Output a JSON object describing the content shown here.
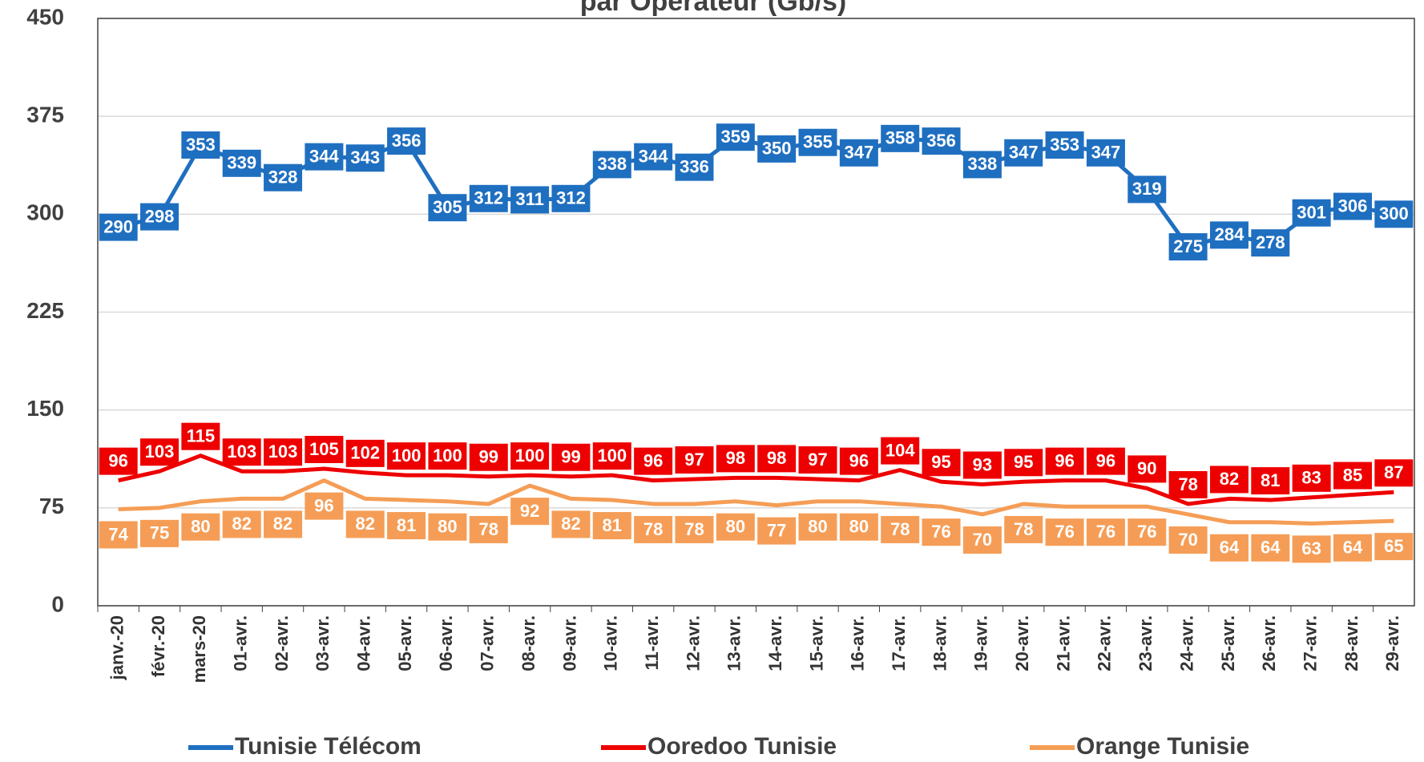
{
  "chart_data": {
    "type": "line",
    "title": "par Opérateur (Gb/s)",
    "categories": [
      "janv.-20",
      "févr.-20",
      "mars-20",
      "01-avr.",
      "02-avr.",
      "03-avr.",
      "04-avr.",
      "05-avr.",
      "06-avr.",
      "07-avr.",
      "08-avr.",
      "09-avr.",
      "10-avr.",
      "11-avr.",
      "12-avr.",
      "13-avr.",
      "14-avr.",
      "15-avr.",
      "16-avr.",
      "17-avr.",
      "18-avr.",
      "19-avr.",
      "20-avr.",
      "21-avr.",
      "22-avr.",
      "23-avr.",
      "24-avr.",
      "25-avr.",
      "26-avr.",
      "27-avr.",
      "28-avr.",
      "29-avr."
    ],
    "series": [
      {
        "name": "Tunisie Télécom",
        "color": "#1f6fc0",
        "values": [
          290,
          298,
          353,
          339,
          328,
          344,
          343,
          356,
          305,
          312,
          311,
          312,
          338,
          344,
          336,
          359,
          350,
          355,
          347,
          358,
          356,
          338,
          347,
          353,
          347,
          319,
          275,
          284,
          278,
          301,
          306,
          300
        ]
      },
      {
        "name": "Ooredoo Tunisie",
        "color": "#ee0000",
        "values": [
          96,
          103,
          115,
          103,
          103,
          105,
          102,
          100,
          100,
          99,
          100,
          99,
          100,
          96,
          97,
          98,
          98,
          97,
          96,
          104,
          95,
          93,
          95,
          96,
          96,
          90,
          78,
          82,
          81,
          83,
          85,
          87
        ]
      },
      {
        "name": "Orange Tunisie",
        "color": "#f59d56",
        "values": [
          74,
          75,
          80,
          82,
          82,
          96,
          82,
          81,
          80,
          78,
          92,
          82,
          81,
          78,
          78,
          80,
          77,
          80,
          80,
          78,
          76,
          70,
          78,
          76,
          76,
          76,
          70,
          64,
          64,
          63,
          64,
          65
        ]
      }
    ],
    "ylim": [
      0,
      450
    ],
    "yticks": [
      0,
      75,
      150,
      225,
      300,
      375,
      450
    ],
    "grid": true,
    "legend": "bottom"
  }
}
